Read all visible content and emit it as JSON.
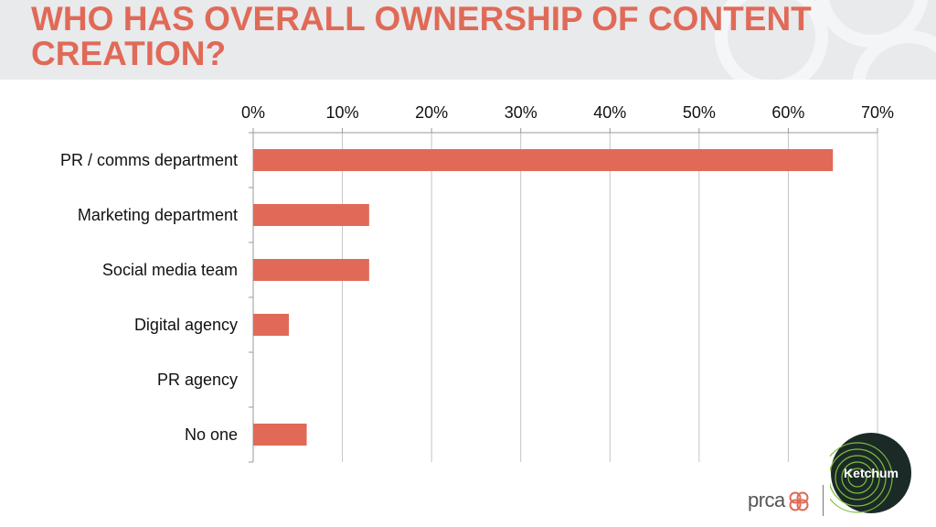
{
  "slide": {
    "title": "WHO HAS OVERALL OWNERSHIP OF CONTENT CREATION?",
    "colors": {
      "accent": "#e06a57",
      "header_bg": "#e8eaec",
      "grid": "#bfbfbf"
    }
  },
  "logos": {
    "prca": "prca",
    "ketchum": "Ketchum"
  },
  "chart_data": {
    "type": "bar",
    "orientation": "horizontal",
    "categories": [
      "PR / comms department",
      "Marketing department",
      "Social media team",
      "Digital agency",
      "PR agency",
      "No one"
    ],
    "values": [
      65,
      13,
      13,
      4,
      0,
      6
    ],
    "xlim": [
      0,
      70
    ],
    "ticks": [
      0,
      10,
      20,
      30,
      40,
      50,
      60,
      70
    ],
    "tick_labels": [
      "0%",
      "10%",
      "20%",
      "30%",
      "40%",
      "50%",
      "60%",
      "70%"
    ],
    "axis_position": "top",
    "grid": true,
    "legend": "none",
    "bar_color": "#e06a57",
    "title": "",
    "xlabel": "",
    "ylabel": ""
  }
}
